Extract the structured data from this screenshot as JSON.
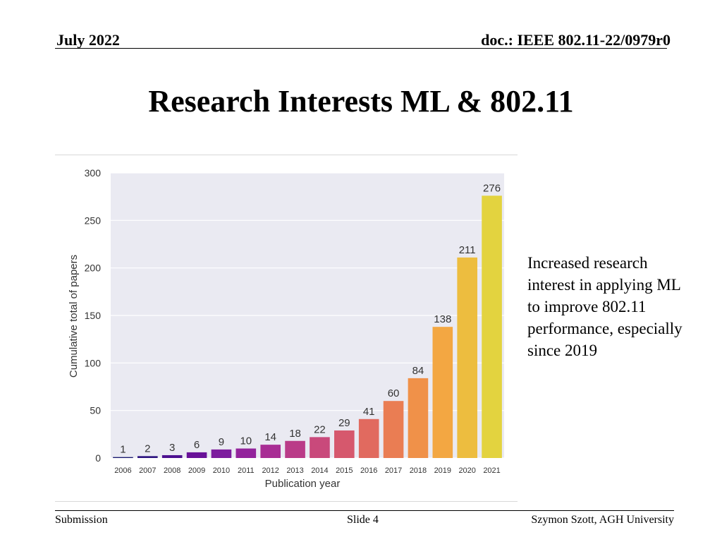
{
  "header": {
    "date": "July 2022",
    "doc": "doc.: IEEE 802.11-22/0979r0"
  },
  "slide_title": "Research Interests ML & 802.11",
  "note": "Increased research interest in applying ML to improve 802.11 performance, especially since 2019",
  "footer": {
    "left": "Submission",
    "center": "Slide 4",
    "right": "Szymon Szott, AGH University"
  },
  "colors": {
    "plot_bg": "#eaeaf2",
    "bars": [
      "#1a1a70",
      "#2e1580",
      "#4d1190",
      "#681198",
      "#7d1c9e",
      "#93239c",
      "#a82d94",
      "#ba3b88",
      "#c9497b",
      "#d6586d",
      "#e16a5f",
      "#ea7d53",
      "#f09149",
      "#f3a742",
      "#edbd3f",
      "#e3d33f"
    ]
  },
  "chart_data": {
    "type": "bar",
    "title": "",
    "xlabel": "Publication year",
    "ylabel": "Cumulative total of papers",
    "ylim": [
      0,
      300
    ],
    "yticks": [
      0,
      50,
      100,
      150,
      200,
      250,
      300
    ],
    "categories": [
      "2006",
      "2007",
      "2008",
      "2009",
      "2010",
      "2011",
      "2012",
      "2013",
      "2014",
      "2015",
      "2016",
      "2017",
      "2018",
      "2019",
      "2020",
      "2021"
    ],
    "values": [
      1,
      2,
      3,
      6,
      9,
      10,
      14,
      18,
      22,
      29,
      41,
      60,
      84,
      138,
      211,
      276
    ],
    "grid": true,
    "data_labels": true
  }
}
